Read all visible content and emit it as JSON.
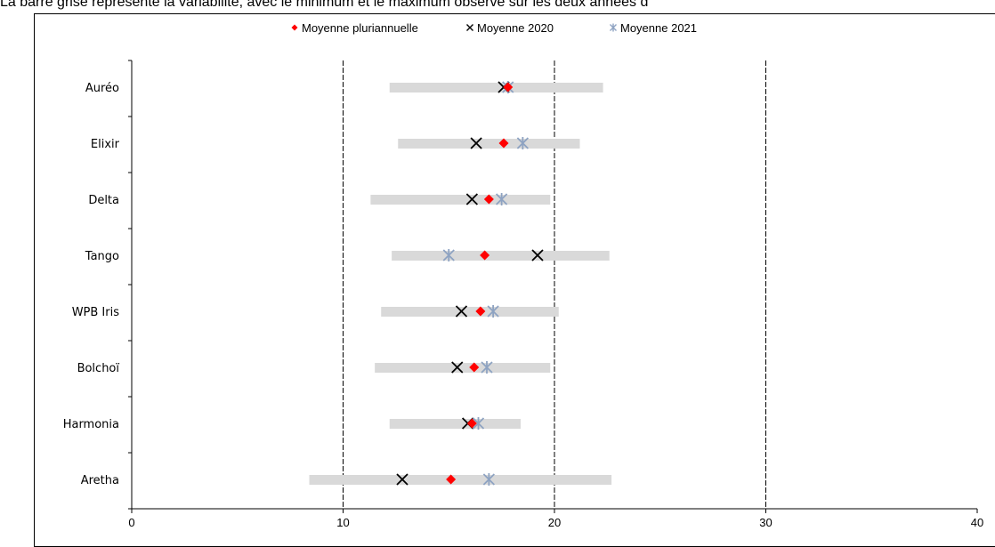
{
  "caption": "La barre grise représente la variabilité, avec le minimum et le maximum observé sur les deux années d",
  "chart_data": {
    "type": "scatter",
    "orientation": "horizontal",
    "categories": [
      "Auréo",
      "Elixir",
      "Delta",
      "Tango",
      "WPB Iris",
      "Bolchoï",
      "Harmonia",
      "Aretha"
    ],
    "xlim": [
      0,
      40
    ],
    "xticks": [
      0,
      10,
      20,
      30,
      40
    ],
    "grid": "vertical dashed at 10, 20, 30",
    "legend_position": "top-center",
    "ranges": [
      {
        "min": 12.2,
        "max": 22.3
      },
      {
        "min": 12.6,
        "max": 21.2
      },
      {
        "min": 11.3,
        "max": 19.8
      },
      {
        "min": 12.3,
        "max": 22.6
      },
      {
        "min": 11.8,
        "max": 20.2
      },
      {
        "min": 11.5,
        "max": 19.8
      },
      {
        "min": 12.2,
        "max": 18.4
      },
      {
        "min": 8.4,
        "max": 22.7
      }
    ],
    "series": [
      {
        "name": "Moyenne pluriannuelle",
        "marker": "diamond",
        "color": "#ff0000",
        "values": [
          17.8,
          17.6,
          16.9,
          16.7,
          16.5,
          16.2,
          16.1,
          15.1
        ]
      },
      {
        "name": "Moyenne 2020",
        "marker": "x",
        "color": "#000000",
        "values": [
          17.6,
          16.3,
          16.1,
          19.2,
          15.6,
          15.4,
          15.9,
          12.8
        ]
      },
      {
        "name": "Moyenne 2021",
        "marker": "asterisk",
        "color": "#8ea3c2",
        "values": [
          17.8,
          18.5,
          17.5,
          15.0,
          17.1,
          16.8,
          16.4,
          16.9
        ]
      }
    ]
  }
}
